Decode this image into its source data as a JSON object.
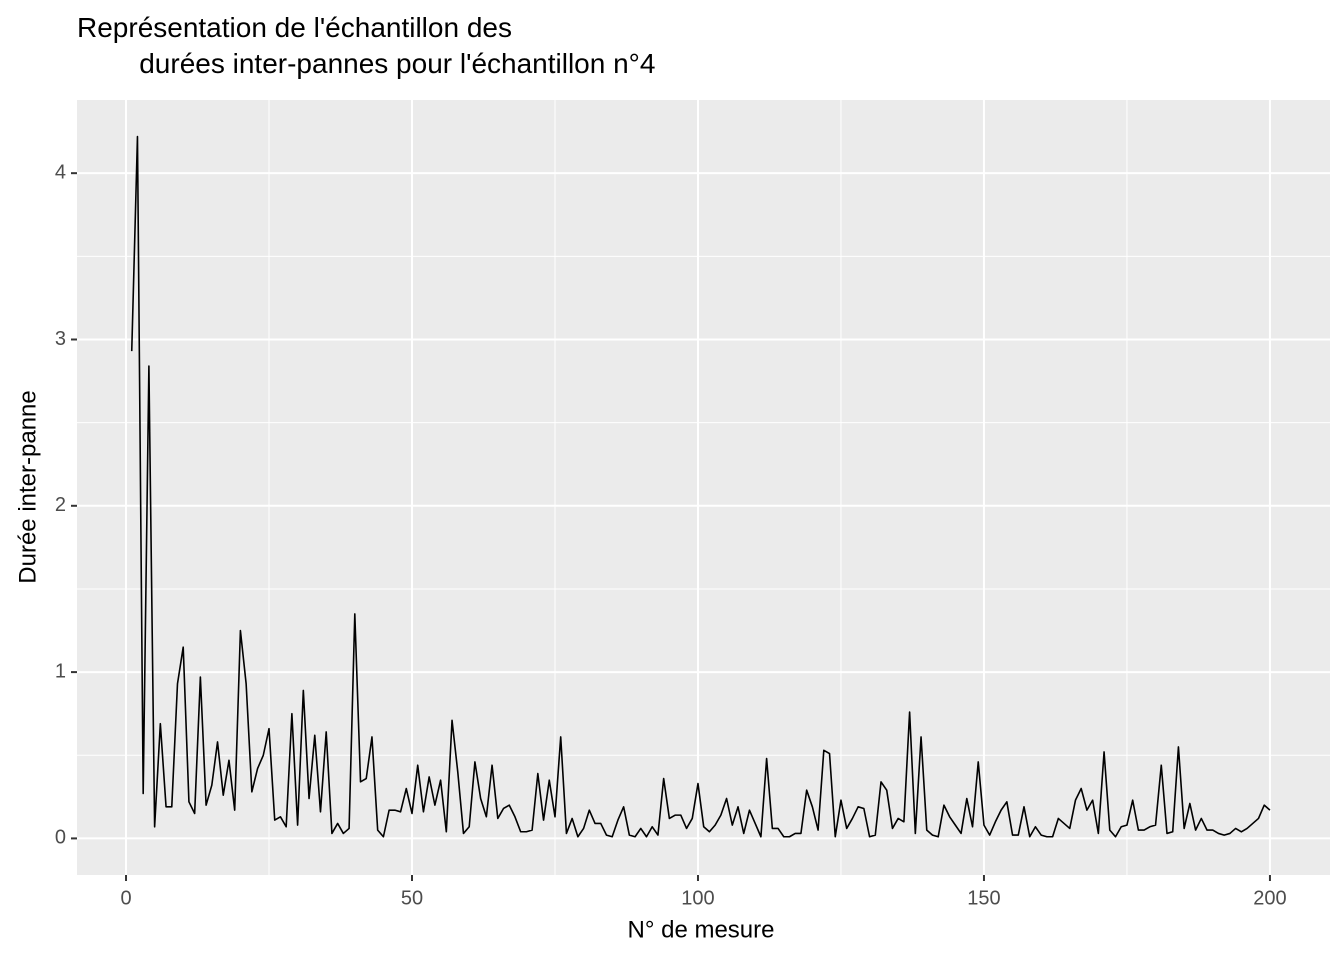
{
  "chart_data": {
    "type": "line",
    "title": "Représentation de l'échantillon des\n        durées inter-pannes pour l'échantillon n°4",
    "x_label": "N° de mesure",
    "y_label": "Durée inter-panne",
    "x": [
      1,
      2,
      3,
      4,
      5,
      6,
      7,
      8,
      9,
      10,
      11,
      12,
      13,
      14,
      15,
      16,
      17,
      18,
      19,
      20,
      21,
      22,
      23,
      24,
      25,
      26,
      27,
      28,
      29,
      30,
      31,
      32,
      33,
      34,
      35,
      36,
      37,
      38,
      39,
      40,
      41,
      42,
      43,
      44,
      45,
      46,
      47,
      48,
      49,
      50,
      51,
      52,
      53,
      54,
      55,
      56,
      57,
      58,
      59,
      60,
      61,
      62,
      63,
      64,
      65,
      66,
      67,
      68,
      69,
      70,
      71,
      72,
      73,
      74,
      75,
      76,
      77,
      78,
      79,
      80,
      81,
      82,
      83,
      84,
      85,
      86,
      87,
      88,
      89,
      90,
      91,
      92,
      93,
      94,
      95,
      96,
      97,
      98,
      99,
      100,
      101,
      102,
      103,
      104,
      105,
      106,
      107,
      108,
      109,
      110,
      111,
      112,
      113,
      114,
      115,
      116,
      117,
      118,
      119,
      120,
      121,
      122,
      123,
      124,
      125,
      126,
      127,
      128,
      129,
      130,
      131,
      132,
      133,
      134,
      135,
      136,
      137,
      138,
      139,
      140,
      141,
      142,
      143,
      144,
      145,
      146,
      147,
      148,
      149,
      150,
      151,
      152,
      153,
      154,
      155,
      156,
      157,
      158,
      159,
      160,
      161,
      162,
      163,
      164,
      165,
      166,
      167,
      168,
      169,
      170,
      171,
      172,
      173,
      174,
      175,
      176,
      177,
      178,
      179,
      180,
      181,
      182,
      183,
      184,
      185,
      186,
      187,
      188,
      189,
      190,
      191,
      192,
      193,
      194,
      195,
      196,
      197,
      198,
      199,
      200
    ],
    "series": [
      {
        "color": "#000000",
        "values": [
          2.93,
          4.22,
          0.27,
          2.84,
          0.07,
          0.69,
          0.19,
          0.19,
          0.93,
          1.15,
          0.22,
          0.15,
          0.97,
          0.2,
          0.32,
          0.58,
          0.26,
          0.47,
          0.17,
          1.25,
          0.93,
          0.28,
          0.42,
          0.5,
          0.66,
          0.11,
          0.13,
          0.07,
          0.75,
          0.08,
          0.89,
          0.24,
          0.62,
          0.16,
          0.64,
          0.03,
          0.09,
          0.03,
          0.06,
          1.35,
          0.34,
          0.36,
          0.61,
          0.05,
          0.01,
          0.17,
          0.17,
          0.16,
          0.3,
          0.15,
          0.44,
          0.16,
          0.37,
          0.2,
          0.35,
          0.04,
          0.71,
          0.4,
          0.03,
          0.07,
          0.46,
          0.24,
          0.13,
          0.44,
          0.12,
          0.18,
          0.2,
          0.13,
          0.04,
          0.04,
          0.05,
          0.39,
          0.11,
          0.35,
          0.13,
          0.61,
          0.03,
          0.12,
          0.01,
          0.06,
          0.17,
          0.09,
          0.09,
          0.02,
          0.01,
          0.11,
          0.19,
          0.02,
          0.01,
          0.06,
          0.01,
          0.07,
          0.02,
          0.36,
          0.12,
          0.14,
          0.14,
          0.06,
          0.12,
          0.33,
          0.07,
          0.04,
          0.08,
          0.14,
          0.24,
          0.08,
          0.19,
          0.03,
          0.17,
          0.09,
          0.01,
          0.48,
          0.06,
          0.06,
          0.01,
          0.01,
          0.03,
          0.03,
          0.29,
          0.19,
          0.05,
          0.53,
          0.51,
          0.01,
          0.23,
          0.06,
          0.12,
          0.19,
          0.18,
          0.01,
          0.02,
          0.34,
          0.29,
          0.06,
          0.12,
          0.1,
          0.76,
          0.03,
          0.61,
          0.05,
          0.02,
          0.01,
          0.2,
          0.13,
          0.08,
          0.03,
          0.24,
          0.07,
          0.46,
          0.08,
          0.02,
          0.1,
          0.17,
          0.22,
          0.02,
          0.02,
          0.19,
          0.01,
          0.07,
          0.02,
          0.01,
          0.01,
          0.12,
          0.09,
          0.06,
          0.23,
          0.3,
          0.17,
          0.23,
          0.03,
          0.52,
          0.05,
          0.01,
          0.07,
          0.08,
          0.23,
          0.05,
          0.05,
          0.07,
          0.08,
          0.44,
          0.03,
          0.04,
          0.55,
          0.06,
          0.21,
          0.05,
          0.12,
          0.05,
          0.05,
          0.03,
          0.02,
          0.03,
          0.06,
          0.04,
          0.06,
          0.09,
          0.12,
          0.2,
          0.17
        ]
      }
    ],
    "xlim": [
      -8.57,
      210.5
    ],
    "xticks": [
      0,
      50,
      100,
      150,
      200
    ],
    "ylim": [
      -0.22,
      4.44
    ],
    "yticks": [
      0,
      1,
      2,
      3,
      4
    ],
    "grid": true,
    "panel_color": "#EBEBEB"
  }
}
